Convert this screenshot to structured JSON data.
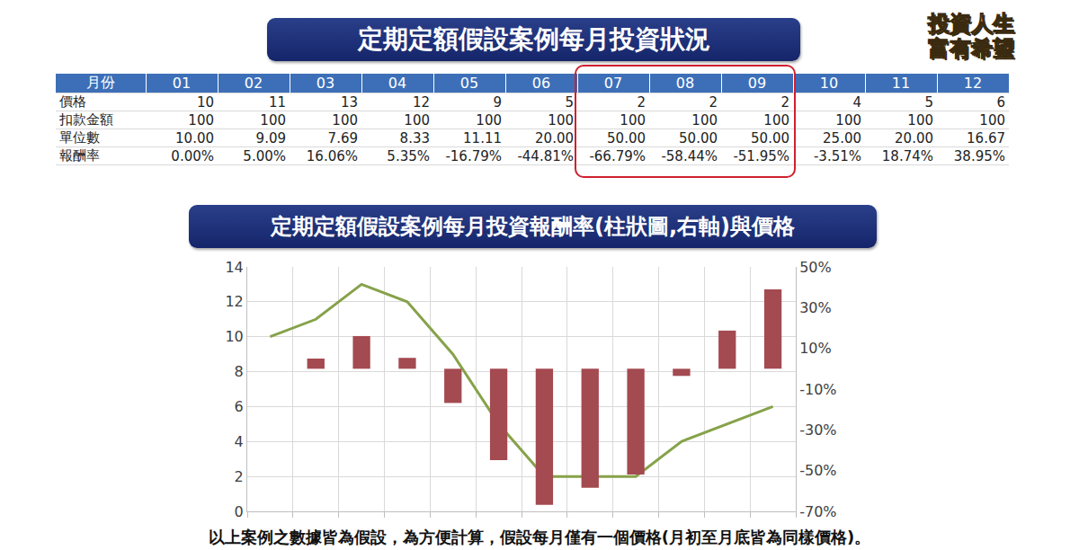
{
  "header": {
    "title": "定期定額假設案例每月投資狀況",
    "logo": [
      "投資人生",
      "富有希望"
    ]
  },
  "table": {
    "header": [
      "月份",
      "01",
      "02",
      "03",
      "04",
      "05",
      "06",
      "07",
      "08",
      "09",
      "10",
      "11",
      "12"
    ],
    "rows": [
      [
        "價格",
        "10",
        "11",
        "13",
        "12",
        "9",
        "5",
        "2",
        "2",
        "2",
        "4",
        "5",
        "6"
      ],
      [
        "扣款金額",
        "100",
        "100",
        "100",
        "100",
        "100",
        "100",
        "100",
        "100",
        "100",
        "100",
        "100",
        "100"
      ],
      [
        "單位數",
        "10.00",
        "9.09",
        "7.69",
        "8.33",
        "11.11",
        "20.00",
        "50.00",
        "50.00",
        "50.00",
        "25.00",
        "20.00",
        "16.67"
      ],
      [
        "報酬率",
        "0.00%",
        "5.00%",
        "16.06%",
        "5.35%",
        "-16.79%",
        "-44.81%",
        "-66.79%",
        "-58.44%",
        "-51.95%",
        "-3.51%",
        "18.74%",
        "38.95%"
      ]
    ]
  },
  "chart_data": {
    "type": "bar",
    "title": "定期定額假設案例每月投資報酬率(柱狀圖,右軸)與價格",
    "categories": [
      null,
      null,
      null,
      null,
      null,
      null,
      null,
      null,
      null,
      null,
      null,
      null
    ],
    "series": [
      {
        "type": "bar",
        "axis": "y2",
        "color": "#a44a51",
        "values": [
          0,
          5,
          16.06,
          5.35,
          -16.79,
          -44.81,
          -66.79,
          -58.44,
          -51.95,
          -3.51,
          18.74,
          38.95
        ]
      },
      {
        "type": "line",
        "color": "#86a24a",
        "values": [
          10,
          11,
          13,
          12,
          9,
          5,
          2,
          2,
          2,
          4,
          5,
          6
        ]
      }
    ],
    "ylim": [
      0,
      14
    ],
    "yticks": [
      0,
      2,
      4,
      6,
      8,
      10,
      12,
      14
    ],
    "y2lim": [
      -70,
      50
    ],
    "y2ticks": [
      {
        "value": -70,
        "label": "-70%"
      },
      {
        "value": -50,
        "label": "-50%"
      },
      {
        "value": -30,
        "label": "-30%"
      },
      {
        "value": -10,
        "label": "-10%"
      },
      {
        "value": 10,
        "label": "10%"
      },
      {
        "value": 30,
        "label": "30%"
      },
      {
        "value": 50,
        "label": "50%"
      }
    ],
    "grid": true,
    "tick_labels": "y"
  },
  "footnote": "以上案例之數據皆為假設，為方便計算，假設每月僅有一個價格(月初至月底皆為同樣價格)。"
}
